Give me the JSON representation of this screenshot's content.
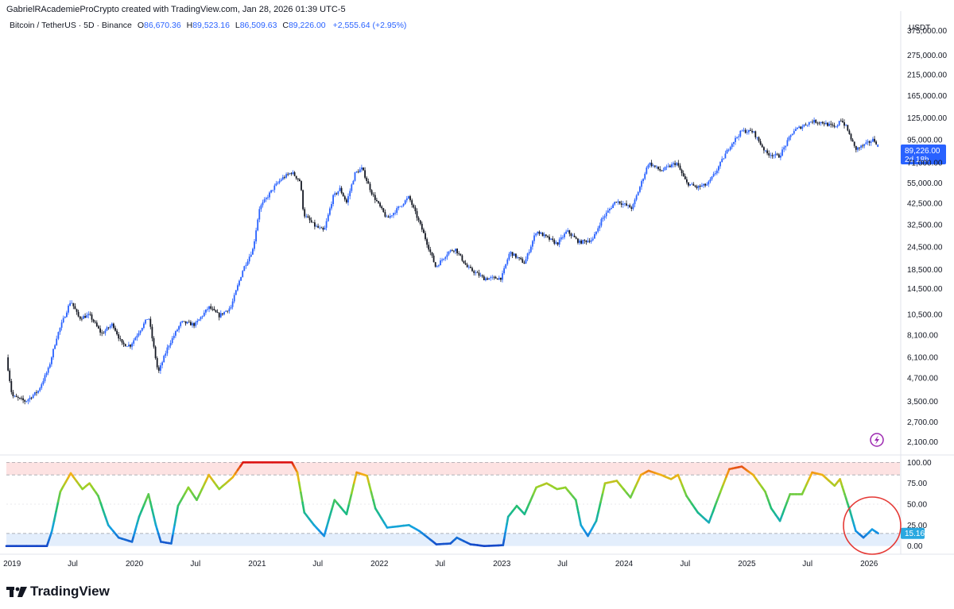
{
  "header": {
    "attribution": "GabrielRAcademieProCrypto created with TradingView.com, Jan 28, 2026 01:39 UTC-5"
  },
  "symbol": {
    "name": "Bitcoin / TetherUS · 5D · Binance",
    "open_label": "O",
    "open": "86,670.36",
    "high_label": "H",
    "high": "89,523.16",
    "low_label": "L",
    "low": "86,509.63",
    "close_label": "C",
    "close": "89,226.00",
    "change": "+2,555.64 (+2.95%)"
  },
  "price_axis": {
    "currency": "USDT",
    "current_price": "89,226.00",
    "countdown": "2d 18h"
  },
  "indicator_axis": {
    "current_value": "15.16"
  },
  "colors": {
    "up": "#2962ff",
    "down": "#131722",
    "price_tag": "#2962ff",
    "overbought_band": "#fde2e2",
    "oversold_band": "#e3eefc",
    "highlight_circle": "#e53935"
  },
  "logo": {
    "text": "TradingView"
  },
  "chart_data": [
    {
      "type": "candlestick",
      "scale": "log",
      "ylim": [
        1800,
        480000
      ],
      "x_range": [
        "2018-12-15",
        "2026-02-05"
      ],
      "y_ticks": [
        2100,
        2700,
        3500,
        4700,
        6100,
        8100,
        10500,
        14500,
        18500,
        24500,
        32500,
        42500,
        55000,
        71000,
        95000,
        125000,
        165000,
        215000,
        275000,
        375000
      ],
      "y_tick_labels": [
        "2,100.00",
        "2,700.00",
        "3,500.00",
        "4,700.00",
        "6,100.00",
        "8,100.00",
        "10,500.00",
        "14,500.00",
        "18,500.00",
        "24,500.00",
        "32,500.00",
        "42,500.00",
        "55,000.00",
        "71,000.00",
        "95,000.00",
        "125,000.00",
        "165,000.00",
        "215,000.00",
        "275,000.00",
        "375,000.00"
      ],
      "x_tick_labels": [
        "2019",
        "Jul",
        "2020",
        "Jul",
        "2021",
        "Jul",
        "2022",
        "Jul",
        "2023",
        "Jul",
        "2024",
        "Jul",
        "2025",
        "Jul",
        "2026"
      ],
      "x_tick_dates": [
        "2019-01-01",
        "2019-07-01",
        "2020-01-01",
        "2020-07-01",
        "2021-01-01",
        "2021-07-01",
        "2022-01-01",
        "2022-07-01",
        "2023-01-01",
        "2023-07-01",
        "2024-01-01",
        "2024-07-01",
        "2025-01-01",
        "2025-07-01",
        "2026-01-01"
      ],
      "close_path": [
        [
          "2018-12-15",
          6100
        ],
        [
          "2019-01-01",
          3750
        ],
        [
          "2019-02-10",
          3500
        ],
        [
          "2019-03-20",
          4000
        ],
        [
          "2019-04-20",
          5300
        ],
        [
          "2019-05-15",
          8000
        ],
        [
          "2019-06-25",
          12500
        ],
        [
          "2019-07-20",
          10000
        ],
        [
          "2019-08-20",
          10400
        ],
        [
          "2019-09-25",
          8200
        ],
        [
          "2019-10-28",
          9300
        ],
        [
          "2019-11-25",
          7200
        ],
        [
          "2019-12-20",
          7100
        ],
        [
          "2020-02-12",
          10200
        ],
        [
          "2020-03-12",
          5000
        ],
        [
          "2020-04-10",
          7000
        ],
        [
          "2020-05-20",
          9500
        ],
        [
          "2020-06-30",
          9200
        ],
        [
          "2020-08-10",
          11500
        ],
        [
          "2020-09-10",
          10300
        ],
        [
          "2020-10-15",
          11500
        ],
        [
          "2020-11-20",
          18500
        ],
        [
          "2020-12-20",
          24000
        ],
        [
          "2021-01-08",
          40000
        ],
        [
          "2021-02-20",
          52000
        ],
        [
          "2021-03-15",
          58000
        ],
        [
          "2021-04-14",
          63000
        ],
        [
          "2021-05-10",
          56000
        ],
        [
          "2021-05-20",
          37000
        ],
        [
          "2021-06-22",
          32000
        ],
        [
          "2021-07-20",
          30000
        ],
        [
          "2021-08-15",
          46000
        ],
        [
          "2021-09-05",
          51000
        ],
        [
          "2021-09-25",
          43000
        ],
        [
          "2021-10-20",
          62000
        ],
        [
          "2021-11-10",
          66000
        ],
        [
          "2021-12-10",
          48000
        ],
        [
          "2022-01-24",
          35000
        ],
        [
          "2022-02-20",
          39000
        ],
        [
          "2022-03-30",
          46000
        ],
        [
          "2022-05-10",
          30000
        ],
        [
          "2022-06-18",
          19000
        ],
        [
          "2022-07-25",
          23000
        ],
        [
          "2022-08-15",
          24000
        ],
        [
          "2022-09-20",
          19000
        ],
        [
          "2022-11-09",
          16500
        ],
        [
          "2022-12-31",
          16600
        ],
        [
          "2023-01-25",
          23000
        ],
        [
          "2023-03-10",
          20000
        ],
        [
          "2023-04-14",
          30000
        ],
        [
          "2023-06-15",
          25500
        ],
        [
          "2023-07-15",
          30000
        ],
        [
          "2023-08-20",
          26000
        ],
        [
          "2023-09-30",
          27000
        ],
        [
          "2023-10-25",
          34500
        ],
        [
          "2023-12-08",
          44000
        ],
        [
          "2024-01-25",
          40000
        ],
        [
          "2024-03-14",
          71000
        ],
        [
          "2024-04-20",
          64000
        ],
        [
          "2024-06-05",
          71000
        ],
        [
          "2024-07-05",
          55000
        ],
        [
          "2024-08-05",
          52000
        ],
        [
          "2024-09-06",
          54000
        ],
        [
          "2024-09-30",
          63000
        ],
        [
          "2024-11-12",
          88000
        ],
        [
          "2024-12-17",
          106000
        ],
        [
          "2025-01-20",
          105000
        ],
        [
          "2025-02-28",
          80000
        ],
        [
          "2025-04-08",
          77000
        ],
        [
          "2025-05-20",
          106000
        ],
        [
          "2025-07-14",
          120000
        ],
        [
          "2025-08-14",
          118000
        ],
        [
          "2025-09-25",
          110000
        ],
        [
          "2025-10-06",
          124000
        ],
        [
          "2025-10-25",
          111000
        ],
        [
          "2025-11-21",
          84000
        ],
        [
          "2025-12-15",
          88000
        ],
        [
          "2026-01-14",
          95000
        ],
        [
          "2026-01-28",
          89226
        ]
      ],
      "last_candle": {
        "open": 86670.36,
        "high": 89523.16,
        "low": 86509.63,
        "close": 89226.0
      }
    },
    {
      "type": "line",
      "ylim": [
        -6,
        106
      ],
      "y_ticks": [
        0,
        25,
        50,
        75,
        100
      ],
      "y_tick_labels": [
        "0.00",
        "25.00",
        "50.00",
        "75.00",
        "100.00"
      ],
      "overbought_band": [
        85,
        100
      ],
      "oversold_band": [
        0,
        15
      ],
      "last_value": 15.16,
      "points": [
        [
          "2018-12-15",
          0
        ],
        [
          "2019-04-15",
          0
        ],
        [
          "2019-04-30",
          18
        ],
        [
          "2019-05-25",
          65
        ],
        [
          "2019-06-25",
          87
        ],
        [
          "2019-07-30",
          68
        ],
        [
          "2019-08-20",
          75
        ],
        [
          "2019-09-15",
          60
        ],
        [
          "2019-10-15",
          25
        ],
        [
          "2019-11-15",
          10
        ],
        [
          "2019-12-25",
          5
        ],
        [
          "2020-01-15",
          35
        ],
        [
          "2020-02-12",
          62
        ],
        [
          "2020-03-05",
          25
        ],
        [
          "2020-03-20",
          5
        ],
        [
          "2020-04-20",
          3
        ],
        [
          "2020-05-10",
          48
        ],
        [
          "2020-06-10",
          70
        ],
        [
          "2020-07-05",
          55
        ],
        [
          "2020-08-10",
          85
        ],
        [
          "2020-09-10",
          68
        ],
        [
          "2020-10-20",
          82
        ],
        [
          "2020-11-20",
          100
        ],
        [
          "2020-12-20",
          100
        ],
        [
          "2021-04-15",
          100
        ],
        [
          "2021-05-01",
          88
        ],
        [
          "2021-05-22",
          40
        ],
        [
          "2021-06-20",
          25
        ],
        [
          "2021-07-20",
          12
        ],
        [
          "2021-08-20",
          55
        ],
        [
          "2021-09-25",
          38
        ],
        [
          "2021-10-25",
          88
        ],
        [
          "2021-11-25",
          84
        ],
        [
          "2021-12-20",
          45
        ],
        [
          "2022-01-24",
          22
        ],
        [
          "2022-03-30",
          25
        ],
        [
          "2022-04-30",
          18
        ],
        [
          "2022-06-01",
          8
        ],
        [
          "2022-06-20",
          2
        ],
        [
          "2022-08-01",
          3
        ],
        [
          "2022-08-20",
          10
        ],
        [
          "2022-09-30",
          2
        ],
        [
          "2022-11-10",
          0
        ],
        [
          "2023-01-05",
          1
        ],
        [
          "2023-01-20",
          35
        ],
        [
          "2023-02-15",
          48
        ],
        [
          "2023-03-10",
          38
        ],
        [
          "2023-04-14",
          70
        ],
        [
          "2023-05-15",
          75
        ],
        [
          "2023-06-15",
          68
        ],
        [
          "2023-07-10",
          70
        ],
        [
          "2023-08-10",
          55
        ],
        [
          "2023-08-25",
          25
        ],
        [
          "2023-09-15",
          12
        ],
        [
          "2023-10-10",
          30
        ],
        [
          "2023-11-05",
          75
        ],
        [
          "2023-12-10",
          78
        ],
        [
          "2024-01-20",
          58
        ],
        [
          "2024-02-20",
          85
        ],
        [
          "2024-03-14",
          90
        ],
        [
          "2024-04-20",
          85
        ],
        [
          "2024-05-20",
          80
        ],
        [
          "2024-06-10",
          85
        ],
        [
          "2024-07-05",
          60
        ],
        [
          "2024-08-08",
          40
        ],
        [
          "2024-09-10",
          28
        ],
        [
          "2024-10-05",
          55
        ],
        [
          "2024-11-10",
          92
        ],
        [
          "2024-12-17",
          95
        ],
        [
          "2025-01-20",
          85
        ],
        [
          "2025-02-25",
          65
        ],
        [
          "2025-03-15",
          45
        ],
        [
          "2025-04-10",
          30
        ],
        [
          "2025-05-10",
          62
        ],
        [
          "2025-06-15",
          62
        ],
        [
          "2025-07-15",
          88
        ],
        [
          "2025-08-15",
          85
        ],
        [
          "2025-09-20",
          72
        ],
        [
          "2025-10-06",
          80
        ],
        [
          "2025-10-20",
          62
        ],
        [
          "2025-11-05",
          42
        ],
        [
          "2025-11-22",
          18
        ],
        [
          "2025-12-15",
          10
        ],
        [
          "2026-01-10",
          20
        ],
        [
          "2026-01-28",
          15.16
        ]
      ]
    }
  ]
}
